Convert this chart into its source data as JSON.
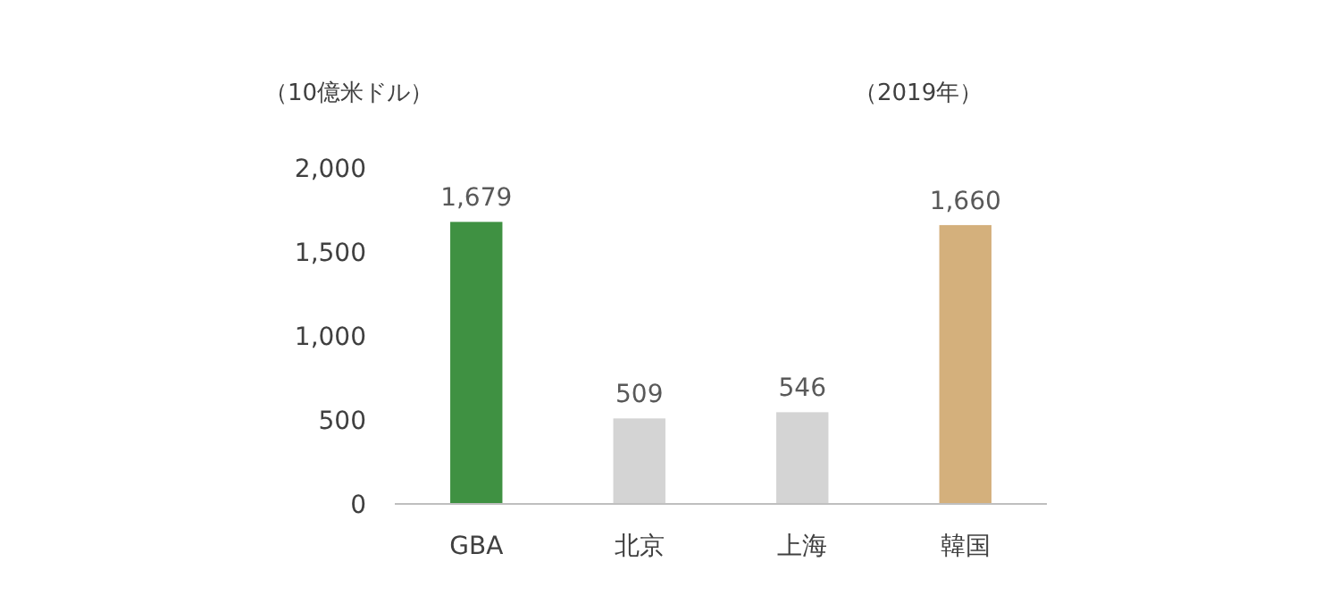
{
  "chart_data": {
    "type": "bar",
    "ylabel": "（10億米ドル）",
    "annotations": [
      "（2019年）"
    ],
    "categories": [
      "GBA",
      "北京",
      "上海",
      "韓国"
    ],
    "values": [
      1679,
      509,
      546,
      1660
    ],
    "colors": [
      "#3f9142",
      "#d4d4d4",
      "#d4d4d4",
      "#d4b07c"
    ],
    "value_labels": [
      "1,679",
      "509",
      "546",
      "1,660"
    ],
    "ylim": [
      0,
      2000
    ],
    "yticks": [
      0,
      500,
      {
        "value": 1000,
        "label": "1,000"
      },
      {
        "value": 1500,
        "label": "1,500"
      },
      {
        "value": 2000,
        "label": "2,000"
      }
    ],
    "grid": false
  }
}
